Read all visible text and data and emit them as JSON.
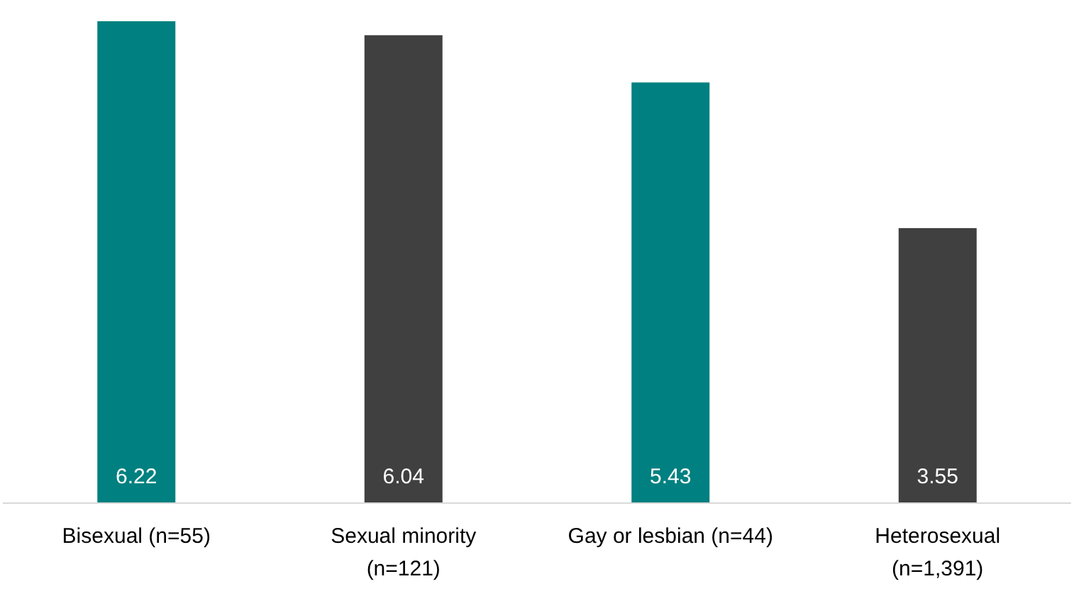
{
  "chart_data": {
    "type": "bar",
    "categories": [
      "Bisexual (n=55)",
      "Sexual minority (n=121)",
      "Gay or lesbian (n=44)",
      "Heterosexual (n=1,391)"
    ],
    "values": [
      6.22,
      6.04,
      5.43,
      3.55
    ],
    "colors": [
      "#008080",
      "#404040",
      "#008080",
      "#404040"
    ],
    "data_labels": true
  }
}
